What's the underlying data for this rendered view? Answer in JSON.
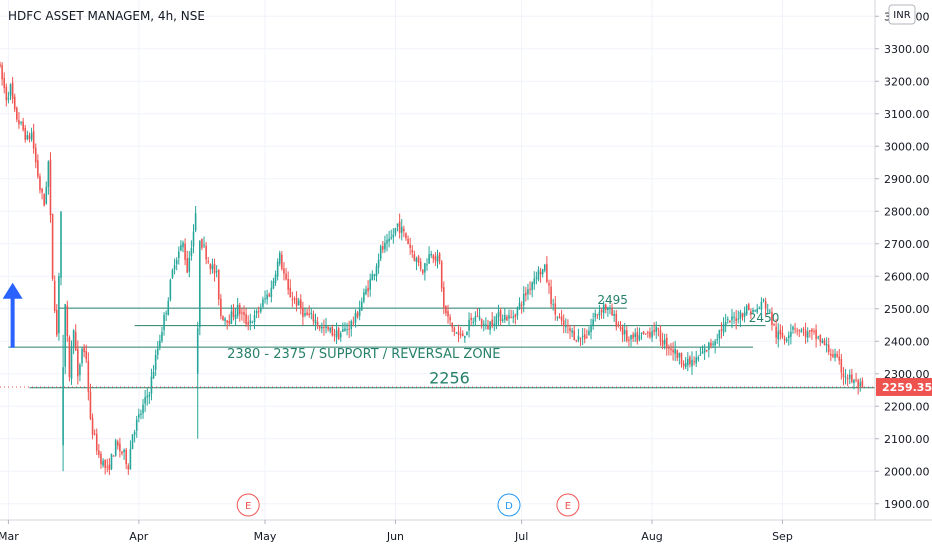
{
  "header": {
    "title": "HDFC ASSET MANAGEM, 4h, NSE",
    "currency": "INR"
  },
  "colors": {
    "up": "#26a69a",
    "down": "#ef5350",
    "grid": "#f0f3fa",
    "line": "#26806a",
    "arrow": "#2962ff",
    "price_label": "#ef5350",
    "dividend": "#2196f3",
    "earnings": "#ef5350"
  },
  "chart_data": {
    "type": "candlestick",
    "title": "HDFC ASSET MANAGEM, 4h, NSE",
    "ylim": [
      1850,
      3450
    ],
    "y_ticks": [
      1900,
      2000,
      2100,
      2200,
      2300,
      2400,
      2500,
      2600,
      2700,
      2800,
      2900,
      3000,
      3100,
      3200,
      3300,
      3400
    ],
    "y_tick_labels": [
      "1900.00",
      "2000.00",
      "2100.00",
      "2200.00",
      "2300.00",
      "2400.00",
      "2500.00",
      "2600.00",
      "2700.00",
      "2800.00",
      "2900.00",
      "3000.00",
      "3100.00",
      "3200.00",
      "3300.00",
      "3400.00"
    ],
    "x_axis_labels": [
      {
        "label": "Mar",
        "t": 0
      },
      {
        "label": "Apr",
        "t": 31
      },
      {
        "label": "May",
        "t": 61
      },
      {
        "label": "Jun",
        "t": 92
      },
      {
        "label": "Jul",
        "t": 122
      },
      {
        "label": "Aug",
        "t": 153
      },
      {
        "label": "Sep",
        "t": 184
      }
    ],
    "t_range": [
      -2,
      206
    ],
    "last_t": 203,
    "last_price": 2259.35,
    "last_price_label": "2259.35",
    "keypoints": [
      [
        -2,
        3260
      ],
      [
        0,
        3150
      ],
      [
        1,
        3180
      ],
      [
        2,
        3100
      ],
      [
        4,
        3050
      ],
      [
        5,
        3020
      ],
      [
        6,
        3040
      ],
      [
        7,
        2950
      ],
      [
        8,
        2870
      ],
      [
        9,
        2820
      ],
      [
        10,
        2950
      ],
      [
        11,
        2600
      ],
      [
        12,
        2420
      ],
      [
        13,
        2800
      ],
      [
        14,
        2500
      ],
      [
        15,
        2300
      ],
      [
        16,
        2450
      ],
      [
        17,
        2280
      ],
      [
        18,
        2380
      ],
      [
        19,
        2350
      ],
      [
        20,
        2150
      ],
      [
        22,
        2050
      ],
      [
        24,
        2000
      ],
      [
        26,
        2080
      ],
      [
        28,
        2050
      ],
      [
        29,
        2020
      ],
      [
        30,
        2120
      ],
      [
        32,
        2180
      ],
      [
        34,
        2250
      ],
      [
        36,
        2380
      ],
      [
        38,
        2500
      ],
      [
        40,
        2650
      ],
      [
        42,
        2700
      ],
      [
        43,
        2620
      ],
      [
        45,
        2780
      ],
      [
        46,
        2720
      ],
      [
        48,
        2650
      ],
      [
        50,
        2600
      ],
      [
        51,
        2480
      ],
      [
        53,
        2470
      ],
      [
        55,
        2500
      ],
      [
        57,
        2460
      ],
      [
        59,
        2470
      ],
      [
        61,
        2520
      ],
      [
        63,
        2560
      ],
      [
        64,
        2620
      ],
      [
        65,
        2660
      ],
      [
        67,
        2550
      ],
      [
        69,
        2520
      ],
      [
        71,
        2480
      ],
      [
        73,
        2470
      ],
      [
        75,
        2440
      ],
      [
        77,
        2430
      ],
      [
        79,
        2420
      ],
      [
        81,
        2440
      ],
      [
        83,
        2470
      ],
      [
        85,
        2540
      ],
      [
        87,
        2600
      ],
      [
        89,
        2680
      ],
      [
        91,
        2700
      ],
      [
        93,
        2760
      ],
      [
        95,
        2720
      ],
      [
        97,
        2660
      ],
      [
        99,
        2620
      ],
      [
        101,
        2680
      ],
      [
        103,
        2640
      ],
      [
        104,
        2500
      ],
      [
        106,
        2440
      ],
      [
        108,
        2410
      ],
      [
        110,
        2450
      ],
      [
        112,
        2480
      ],
      [
        114,
        2440
      ],
      [
        116,
        2470
      ],
      [
        118,
        2480
      ],
      [
        120,
        2470
      ],
      [
        122,
        2510
      ],
      [
        124,
        2560
      ],
      [
        126,
        2610
      ],
      [
        128,
        2620
      ],
      [
        130,
        2500
      ],
      [
        132,
        2450
      ],
      [
        134,
        2430
      ],
      [
        136,
        2410
      ],
      [
        138,
        2420
      ],
      [
        140,
        2480
      ],
      [
        142,
        2510
      ],
      [
        144,
        2480
      ],
      [
        146,
        2440
      ],
      [
        148,
        2400
      ],
      [
        150,
        2410
      ],
      [
        152,
        2420
      ],
      [
        154,
        2440
      ],
      [
        156,
        2400
      ],
      [
        158,
        2380
      ],
      [
        160,
        2350
      ],
      [
        162,
        2330
      ],
      [
        164,
        2340
      ],
      [
        166,
        2370
      ],
      [
        168,
        2400
      ],
      [
        170,
        2440
      ],
      [
        172,
        2460
      ],
      [
        174,
        2480
      ],
      [
        176,
        2500
      ],
      [
        178,
        2490
      ],
      [
        180,
        2520
      ],
      [
        181,
        2500
      ],
      [
        183,
        2420
      ],
      [
        185,
        2410
      ],
      [
        187,
        2450
      ],
      [
        189,
        2430
      ],
      [
        191,
        2420
      ],
      [
        193,
        2410
      ],
      [
        195,
        2380
      ],
      [
        197,
        2350
      ],
      [
        199,
        2300
      ],
      [
        201,
        2280
      ],
      [
        203,
        2259.35
      ]
    ],
    "outlier_candles": [
      {
        "t": 13,
        "open": 2080,
        "close": 2320,
        "high": 2420,
        "low": 2000
      },
      {
        "t": 45,
        "open": 2300,
        "close": 2440,
        "high": 2460,
        "low": 2100
      }
    ],
    "annotations": [
      {
        "label": "2495",
        "price": 2502,
        "t_start": 12,
        "t_end": 147,
        "text_t": 140,
        "text_price": 2515
      },
      {
        "label": "2450",
        "price": 2448,
        "t_start": 30,
        "t_end": 180,
        "text_t": 176,
        "text_price": 2460
      },
      {
        "label": "2380 - 2375 / SUPPORT / REVERSAL ZONE",
        "price": 2382,
        "t_start": 0,
        "t_end": 177,
        "text_t": 52,
        "text_price": 2348
      },
      {
        "label": "2256",
        "price": 2257,
        "t_start": 5,
        "t_end": 206,
        "text_t": 100,
        "text_price": 2270
      }
    ],
    "events": [
      {
        "label": "E",
        "t": 57,
        "kind": "earnings"
      },
      {
        "label": "D",
        "t": 119,
        "kind": "dividend"
      },
      {
        "label": "E",
        "t": 133,
        "kind": "earnings"
      }
    ],
    "arrow": {
      "t": 1,
      "from": 2380,
      "to": 2580,
      "direction": "up"
    }
  }
}
